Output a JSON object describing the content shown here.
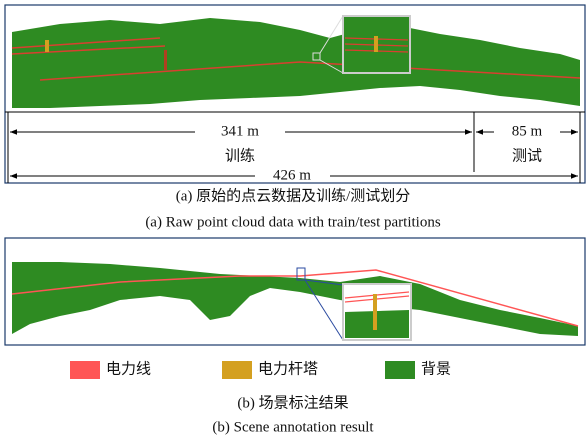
{
  "panel_a": {
    "train_length": "341 m",
    "train_label": "训练",
    "test_length": "85 m",
    "test_label": "测试",
    "total_length": "426 m",
    "caption_cn": "(a) 原始的点云数据及训练/测试划分",
    "caption_en": "(a) Raw point cloud data with train/test partitions"
  },
  "panel_b": {
    "legend": [
      "电力线",
      "电力杆塔",
      "背景"
    ],
    "caption_cn": "(b) 场景标注结果",
    "caption_en": "(b) Scene annotation result"
  }
}
